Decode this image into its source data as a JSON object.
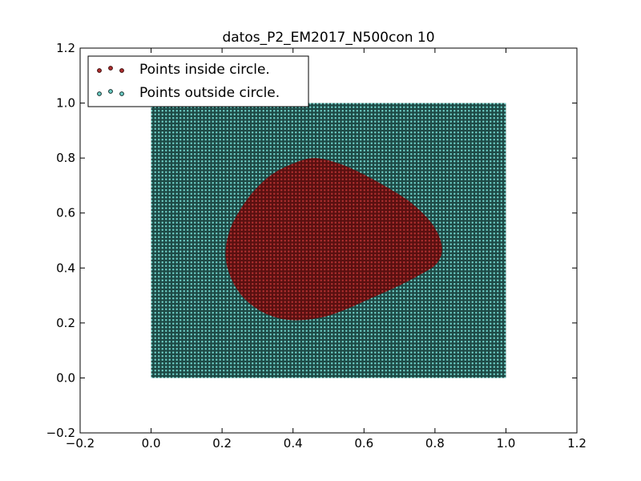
{
  "chart_data": {
    "type": "scatter",
    "title": "datos_P2_EM2017_N500con  10",
    "xlabel": "",
    "ylabel": "",
    "xlim": [
      -0.2,
      1.2
    ],
    "ylim": [
      -0.2,
      1.2
    ],
    "xticks": [
      -0.2,
      0.0,
      0.2,
      0.4,
      0.6,
      0.8,
      1.0,
      1.2
    ],
    "yticks": [
      -0.2,
      0.0,
      0.2,
      0.4,
      0.6,
      0.8,
      1.0,
      1.2
    ],
    "xtick_labels": [
      "−0.2",
      "0.0",
      "0.2",
      "0.4",
      "0.6",
      "0.8",
      "1.0",
      "1.2"
    ],
    "ytick_labels": [
      "−0.2",
      "0.0",
      "0.2",
      "0.4",
      "0.6",
      "0.8",
      "1.0",
      "1.2"
    ],
    "grid": false,
    "legend_position": "top-left",
    "point_grid": {
      "x_range": [
        0.0,
        1.0
      ],
      "y_range": [
        0.0,
        1.0
      ],
      "points_per_axis": 100
    },
    "series": [
      {
        "name": "Points inside circle.",
        "color": "#5a1010",
        "region_boundary": [
          [
            0.46,
            0.8
          ],
          [
            0.53,
            0.78
          ],
          [
            0.6,
            0.74
          ],
          [
            0.67,
            0.69
          ],
          [
            0.73,
            0.64
          ],
          [
            0.78,
            0.58
          ],
          [
            0.81,
            0.52
          ],
          [
            0.82,
            0.46
          ],
          [
            0.8,
            0.41
          ],
          [
            0.75,
            0.37
          ],
          [
            0.69,
            0.33
          ],
          [
            0.62,
            0.29
          ],
          [
            0.55,
            0.25
          ],
          [
            0.48,
            0.22
          ],
          [
            0.4,
            0.21
          ],
          [
            0.33,
            0.23
          ],
          [
            0.27,
            0.28
          ],
          [
            0.23,
            0.35
          ],
          [
            0.21,
            0.44
          ],
          [
            0.22,
            0.53
          ],
          [
            0.25,
            0.61
          ],
          [
            0.29,
            0.68
          ],
          [
            0.34,
            0.74
          ],
          [
            0.4,
            0.78
          ]
        ]
      },
      {
        "name": "Points outside circle.",
        "color": "#1e4a46"
      }
    ]
  }
}
